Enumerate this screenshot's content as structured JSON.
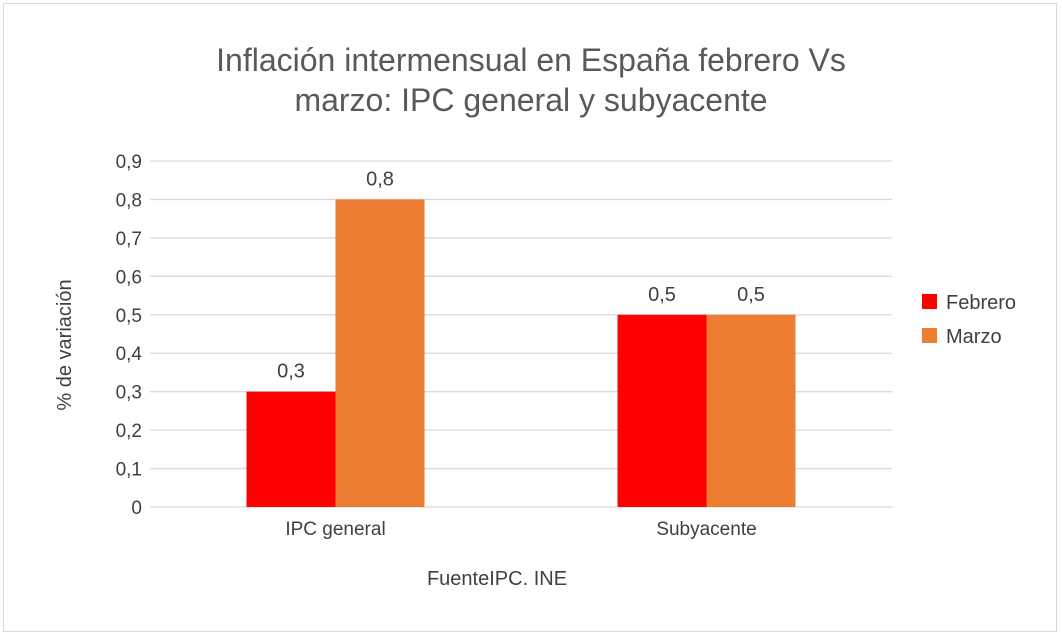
{
  "chart_data": {
    "type": "bar",
    "title_lines": [
      "Inflación intermensual en España febrero Vs",
      "marzo: IPC general y subyacente"
    ],
    "categories": [
      "IPC general",
      "Subyacente"
    ],
    "series": [
      {
        "name": "Febrero",
        "values": [
          0.3,
          0.5
        ],
        "color": "#ff0000"
      },
      {
        "name": "Marzo",
        "values": [
          0.8,
          0.5
        ],
        "color": "#ed7d31"
      }
    ],
    "data_labels": [
      [
        "0,3",
        "0,5"
      ],
      [
        "0,8",
        "0,5"
      ]
    ],
    "ylabel": "% de variación",
    "xlabel": "FuenteIPC. INE",
    "ylim": [
      0,
      0.9
    ],
    "yticks": [
      0,
      0.1,
      0.2,
      0.3,
      0.4,
      0.5,
      0.6,
      0.7,
      0.8,
      0.9
    ],
    "ytick_labels": [
      "0",
      "0,1",
      "0,2",
      "0,3",
      "0,4",
      "0,5",
      "0,6",
      "0,7",
      "0,8",
      "0,9"
    ],
    "grid": true,
    "gridline_color": "#d9d9d9",
    "legend_position": "right"
  }
}
